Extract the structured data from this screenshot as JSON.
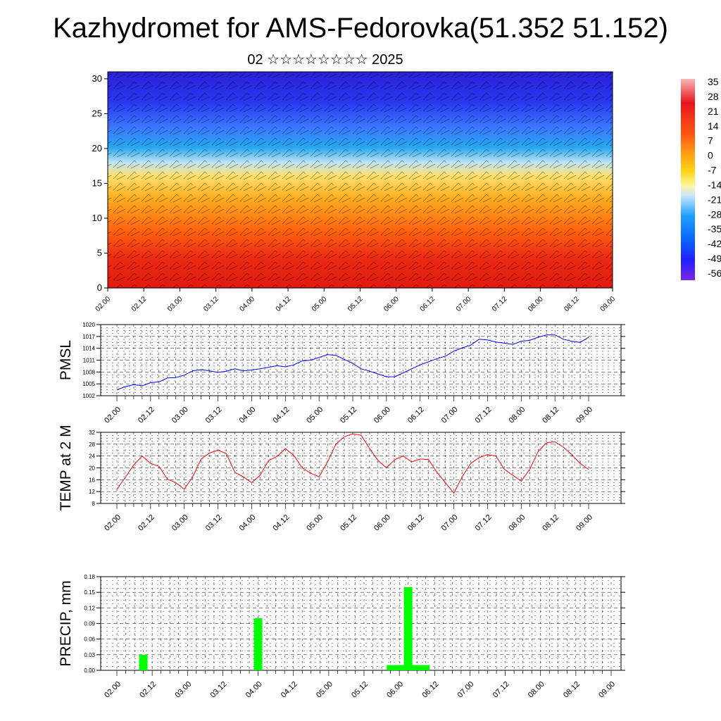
{
  "header": {
    "title": "Kazhydromet for AMS-Fedorovka(51.352 51.152)",
    "subtitle": "02 ☆☆☆☆☆☆☆☆ 2025"
  },
  "colors": {
    "pmsl_line": "#0000ff",
    "temp_line": "#ff0000",
    "precip_bar": "#00ff00",
    "grid": "#000000",
    "colorbar": [
      "#f5b8b8",
      "#e8141c",
      "#ff5a14",
      "#ffa514",
      "#ffd314",
      "#fff6a0",
      "#c8e6ff",
      "#1ea0ff",
      "#0a64ff",
      "#2020ff",
      "#6a1ee6"
    ]
  },
  "chart_data": [
    {
      "type": "heatmap",
      "title": "",
      "xlabel": "",
      "ylabel": "",
      "x_ticks": [
        "02.00",
        "02.12",
        "03.00",
        "03.12",
        "04.00",
        "04.12",
        "05.00",
        "05.12",
        "06.00",
        "06.12",
        "07.00",
        "07.12",
        "08.00",
        "08.12",
        "09.00"
      ],
      "yticks": [
        0,
        5,
        10,
        15,
        20,
        25,
        30
      ],
      "ylim": [
        0,
        31
      ],
      "colorbar_labels": [
        "35",
        "28",
        "21",
        "14",
        "7",
        "0",
        "-7",
        "-14",
        "-21",
        "-28",
        "-35",
        "-42",
        "-49",
        "-56"
      ],
      "overlay": "wind barbs"
    },
    {
      "type": "line",
      "ylabel": "PMSL",
      "ylim": [
        1002,
        1020
      ],
      "yticks": [
        1002,
        1005,
        1008,
        1011,
        1014,
        1017,
        1020
      ],
      "x_ticks": [
        "02.00",
        "02.12",
        "03.00",
        "03.12",
        "04.00",
        "04.12",
        "05.00",
        "05.12",
        "06.00",
        "06.12",
        "07.00",
        "07.12",
        "08.00",
        "08.12",
        "09.00"
      ],
      "x": [
        0,
        3,
        6,
        9,
        12,
        15,
        18,
        21,
        24,
        27,
        30,
        33,
        36,
        39,
        42,
        45,
        48,
        51,
        54,
        57,
        60,
        63,
        66,
        69,
        72,
        75,
        78,
        81,
        84,
        87,
        90,
        93,
        96,
        99,
        102,
        105,
        108,
        111,
        114,
        117,
        120,
        123,
        126,
        129,
        132,
        135,
        138,
        141,
        144,
        147,
        150,
        153,
        156,
        159,
        162,
        165,
        168
      ],
      "values": [
        1003.5,
        1004.3,
        1004.8,
        1004.5,
        1005.3,
        1005.5,
        1006.5,
        1006.6,
        1007.2,
        1008.3,
        1008.6,
        1008.3,
        1007.9,
        1008.2,
        1008.8,
        1008.3,
        1008.5,
        1008.8,
        1009.2,
        1009.6,
        1009.3,
        1009.8,
        1010.8,
        1011.0,
        1011.7,
        1012.4,
        1012.2,
        1011.2,
        1010.2,
        1008.8,
        1008.2,
        1007.5,
        1006.8,
        1006.8,
        1007.8,
        1008.8,
        1009.8,
        1010.6,
        1011.4,
        1012.0,
        1013.3,
        1014.1,
        1014.8,
        1016.3,
        1016.1,
        1015.6,
        1015.3,
        1015.0,
        1015.8,
        1016.0,
        1016.8,
        1017.4,
        1017.4,
        1016.3,
        1015.8,
        1015.5,
        1016.8
      ]
    },
    {
      "type": "line",
      "ylabel": "TEMP at 2 M",
      "ylim": [
        8,
        32
      ],
      "yticks": [
        8,
        12,
        16,
        20,
        24,
        28,
        32
      ],
      "x_ticks": [
        "02.00",
        "02.12",
        "03.00",
        "03.12",
        "04.00",
        "04.12",
        "05.00",
        "05.12",
        "06.00",
        "06.12",
        "07.00",
        "07.12",
        "08.00",
        "08.12",
        "09.00"
      ],
      "x": [
        0,
        3,
        6,
        9,
        12,
        15,
        18,
        21,
        24,
        27,
        30,
        33,
        36,
        39,
        42,
        45,
        48,
        51,
        54,
        57,
        60,
        63,
        66,
        69,
        72,
        75,
        78,
        81,
        84,
        87,
        90,
        93,
        96,
        99,
        102,
        105,
        108,
        111,
        114,
        117,
        120,
        123,
        126,
        129,
        132,
        135,
        138,
        141,
        144,
        147,
        150,
        153,
        156,
        159,
        162,
        165,
        168
      ],
      "values": [
        12.8,
        16.8,
        21.0,
        24.0,
        21.5,
        20.5,
        16.2,
        15.0,
        12.8,
        17.0,
        23.0,
        25.0,
        26.0,
        24.8,
        18.5,
        17.0,
        15.0,
        17.5,
        22.5,
        23.8,
        26.5,
        24.2,
        20.0,
        18.2,
        17.0,
        22.0,
        28.0,
        30.5,
        31.5,
        31.0,
        26.5,
        22.5,
        20.0,
        22.8,
        24.0,
        22.0,
        23.0,
        22.8,
        18.5,
        15.0,
        11.5,
        17.0,
        21.5,
        23.5,
        24.5,
        24.0,
        19.5,
        17.5,
        15.5,
        19.5,
        25.5,
        28.5,
        28.8,
        27.0,
        24.5,
        21.5,
        19.5
      ]
    },
    {
      "type": "bar",
      "ylabel": "PRECIP, mm",
      "ylim": [
        0,
        0.18
      ],
      "yticks": [
        "0.00",
        "0.03",
        "0.06",
        "0.09",
        "0.12",
        "0.15",
        "0.18"
      ],
      "x_ticks": [
        "02.00",
        "02.12",
        "03.00",
        "03.12",
        "04.00",
        "04.12",
        "05.00",
        "05.12",
        "06.00",
        "06.12",
        "07.00",
        "07.12",
        "08.00",
        "08.12",
        "09.00"
      ],
      "bars": [
        {
          "x": 9,
          "value": 0.03
        },
        {
          "x": 48,
          "value": 0.1
        },
        {
          "x": 96,
          "value": 0.01
        },
        {
          "x": 99,
          "value": 0.16
        },
        {
          "x": 102,
          "value": 0.01
        }
      ]
    }
  ]
}
